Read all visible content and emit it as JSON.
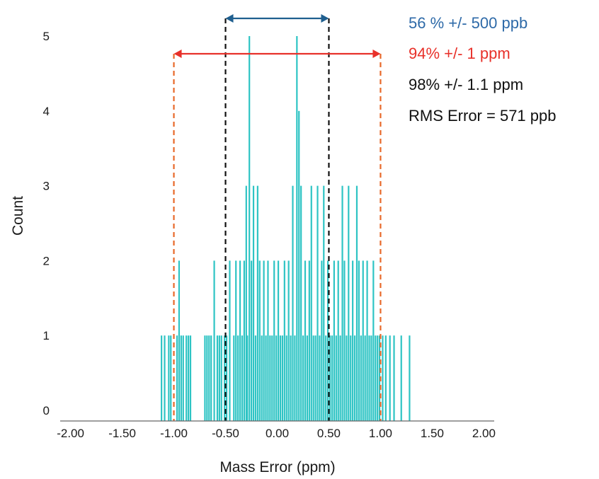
{
  "chart_data": {
    "type": "bar",
    "title": "",
    "xlabel": "Mass Error (ppm)",
    "ylabel": "Count",
    "xlim": [
      -2.1,
      2.1
    ],
    "ylim": [
      0,
      5.25
    ],
    "x_ticks": [
      "-2.00",
      "-1.50",
      "-1.00",
      "-0.50",
      "0.00",
      "0.50",
      "1.00",
      "1.50",
      "2.00"
    ],
    "x_tick_values": [
      -2.0,
      -1.5,
      -1.0,
      -0.5,
      0.0,
      0.5,
      1.0,
      1.5,
      2.0
    ],
    "y_ticks": [
      "0",
      "1",
      "2",
      "3",
      "4",
      "5"
    ],
    "y_tick_values": [
      0,
      1,
      2,
      3,
      4,
      5
    ],
    "grid": false,
    "bar_color": "#2ec4c4",
    "series": [
      {
        "x": [
          -1.12,
          -1.09,
          -1.05,
          -1.03,
          -0.97,
          -0.95,
          -0.93,
          -0.91,
          -0.88,
          -0.86,
          -0.84,
          -0.7,
          -0.68,
          -0.66,
          -0.64,
          -0.61,
          -0.58,
          -0.56,
          -0.54,
          -0.51,
          -0.49,
          -0.46,
          -0.42,
          -0.4,
          -0.38,
          -0.36,
          -0.34,
          -0.32,
          -0.3,
          -0.29,
          -0.27,
          -0.25,
          -0.23,
          -0.21,
          -0.19,
          -0.17,
          -0.15,
          -0.13,
          -0.11,
          -0.09,
          -0.07,
          -0.05,
          -0.03,
          -0.01,
          0.01,
          0.03,
          0.05,
          0.07,
          0.09,
          0.11,
          0.13,
          0.15,
          0.17,
          0.19,
          0.21,
          0.23,
          0.25,
          0.27,
          0.29,
          0.31,
          0.33,
          0.35,
          0.37,
          0.39,
          0.41,
          0.43,
          0.45,
          0.47,
          0.49,
          0.51,
          0.53,
          0.55,
          0.57,
          0.59,
          0.61,
          0.63,
          0.65,
          0.67,
          0.69,
          0.71,
          0.73,
          0.75,
          0.77,
          0.79,
          0.81,
          0.83,
          0.85,
          0.87,
          0.89,
          0.91,
          0.93,
          0.95,
          0.97,
          0.99,
          1.02,
          1.05,
          1.09,
          1.13,
          1.2,
          1.28
        ],
        "values": [
          1,
          1,
          1,
          1,
          1,
          2,
          1,
          1,
          1,
          1,
          1,
          1,
          1,
          1,
          1,
          2,
          1,
          1,
          1,
          1,
          1,
          2,
          1,
          2,
          1,
          2,
          1,
          2,
          3,
          1,
          5,
          2,
          3,
          1,
          3,
          2,
          1,
          2,
          1,
          2,
          1,
          1,
          2,
          1,
          2,
          1,
          1,
          2,
          1,
          2,
          1,
          3,
          1,
          5,
          4,
          3,
          1,
          2,
          1,
          2,
          3,
          1,
          1,
          3,
          1,
          2,
          3,
          1,
          2,
          1,
          1,
          2,
          1,
          2,
          1,
          3,
          2,
          1,
          3,
          1,
          2,
          1,
          3,
          2,
          1,
          2,
          1,
          2,
          1,
          1,
          2,
          1,
          1,
          1,
          1,
          1,
          1,
          1,
          1,
          1
        ]
      }
    ],
    "annotations": [
      {
        "text": "56 % +/- 500 ppb",
        "color": "#2e6aa8"
      },
      {
        "text": "94% +/- 1 ppm",
        "color": "#e8312a"
      },
      {
        "text": "98% +/- 1.1 ppm",
        "color": "#111111"
      },
      {
        "text": "RMS Error = 571 ppb",
        "color": "#111111"
      }
    ],
    "reference_lines": [
      {
        "x": -0.5,
        "color": "#111111",
        "style": "dashed"
      },
      {
        "x": 0.5,
        "color": "#111111",
        "style": "dashed"
      },
      {
        "x": -1.0,
        "color": "#e8692a",
        "style": "dashed"
      },
      {
        "x": 1.0,
        "color": "#e8692a",
        "style": "dashed"
      }
    ],
    "range_arrows": [
      {
        "from": -0.5,
        "to": 0.5,
        "color": "#1f5f8f"
      },
      {
        "from": -1.0,
        "to": 1.0,
        "color": "#e8312a"
      }
    ]
  }
}
